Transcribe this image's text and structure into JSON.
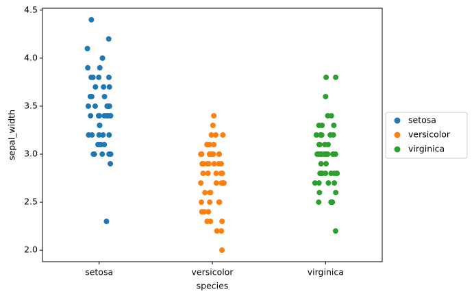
{
  "chart_data": {
    "type": "strip",
    "x_label": "species",
    "y_label": "sepal_width",
    "categories": [
      "setosa",
      "versicolor",
      "virginica"
    ],
    "series": [
      {
        "name": "setosa",
        "color": "#1f77b4",
        "values": [
          3.5,
          3.0,
          3.2,
          3.1,
          3.6,
          3.9,
          3.4,
          3.4,
          2.9,
          3.1,
          3.7,
          3.4,
          3.0,
          3.0,
          4.0,
          4.4,
          3.9,
          3.5,
          3.8,
          3.8,
          3.4,
          3.7,
          3.6,
          3.3,
          3.4,
          3.0,
          3.4,
          3.5,
          3.4,
          3.2,
          3.1,
          3.4,
          4.1,
          4.2,
          3.1,
          3.2,
          3.5,
          3.6,
          3.0,
          3.4,
          3.5,
          2.3,
          3.2,
          3.5,
          3.8,
          3.0,
          3.8,
          3.2,
          3.7,
          3.3
        ]
      },
      {
        "name": "versicolor",
        "color": "#ff7f0e",
        "values": [
          3.2,
          3.2,
          3.1,
          2.3,
          2.8,
          2.8,
          3.3,
          2.4,
          2.9,
          2.7,
          2.0,
          3.0,
          2.2,
          2.9,
          2.9,
          3.1,
          3.0,
          2.7,
          2.2,
          2.5,
          3.2,
          2.8,
          2.5,
          2.8,
          2.9,
          3.0,
          2.8,
          3.0,
          2.9,
          2.6,
          2.4,
          2.4,
          2.7,
          2.7,
          3.0,
          3.4,
          3.1,
          2.3,
          3.0,
          2.5,
          2.6,
          3.0,
          2.6,
          2.3,
          2.7,
          3.0,
          2.9,
          2.9,
          2.5,
          2.8
        ]
      },
      {
        "name": "virginica",
        "color": "#2ca02c",
        "values": [
          3.3,
          2.7,
          3.0,
          2.9,
          3.0,
          3.0,
          2.5,
          2.9,
          2.5,
          3.6,
          3.2,
          2.7,
          3.0,
          2.5,
          2.8,
          3.2,
          3.0,
          3.8,
          2.6,
          2.2,
          3.2,
          2.8,
          2.8,
          2.7,
          3.3,
          3.2,
          2.8,
          3.0,
          2.8,
          3.0,
          2.8,
          3.8,
          2.8,
          2.8,
          2.6,
          3.0,
          3.4,
          3.1,
          3.0,
          3.1,
          3.1,
          3.1,
          2.7,
          3.2,
          3.3,
          3.0,
          2.5,
          3.0,
          3.4,
          3.0
        ]
      }
    ],
    "ylim": [
      1.88,
      4.52
    ],
    "yticks": [
      {
        "value": 2.0,
        "label": "2.0"
      },
      {
        "value": 2.5,
        "label": "2.5"
      },
      {
        "value": 3.0,
        "label": "3.0"
      },
      {
        "value": 3.5,
        "label": "3.5"
      },
      {
        "value": 4.0,
        "label": "4.0"
      },
      {
        "value": 4.5,
        "label": "4.5"
      }
    ],
    "legend": "right"
  }
}
